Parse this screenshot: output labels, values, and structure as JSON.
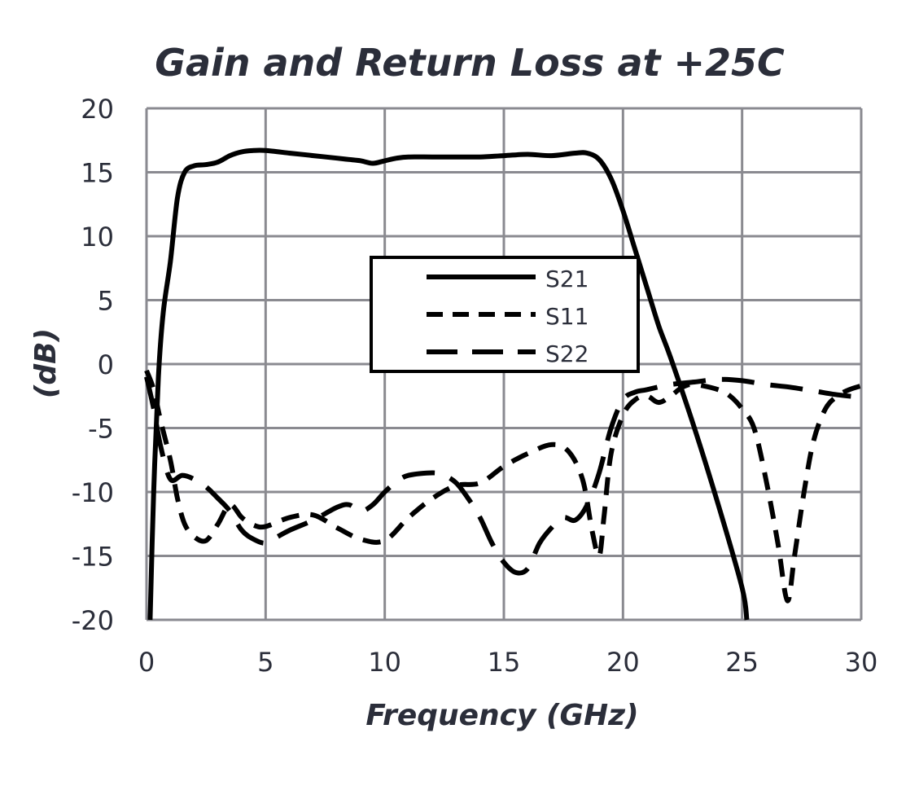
{
  "chart_data": {
    "type": "line",
    "title": "Gain and Return Loss at +25C",
    "xlabel": "Frequency (GHz)",
    "ylabel": "(dB)",
    "xlim": [
      0,
      30
    ],
    "ylim": [
      -20,
      20
    ],
    "x_ticks": [
      0,
      5,
      10,
      15,
      20,
      25,
      30
    ],
    "y_ticks": [
      20,
      15,
      10,
      5,
      0,
      -5,
      -10,
      -15,
      -20
    ],
    "x_tick_labels": [
      "0",
      "5",
      "10",
      "15",
      "20",
      "25",
      "30"
    ],
    "y_tick_labels": [
      "20",
      "15",
      "10",
      "5",
      "0",
      "-5",
      "-10",
      "-15",
      "-20"
    ],
    "grid": true,
    "legend_position": "center",
    "series": [
      {
        "name": "S21",
        "style": "solid",
        "x": [
          0.15,
          0.3,
          0.5,
          0.7,
          1.0,
          1.3,
          1.6,
          2.0,
          2.5,
          3.0,
          3.5,
          4.0,
          4.5,
          5.0,
          6.0,
          7.0,
          8.0,
          8.5,
          9.0,
          9.5,
          10.0,
          10.5,
          11.0,
          12.0,
          13.0,
          14.0,
          15.0,
          16.0,
          17.0,
          18.0,
          18.5,
          19.0,
          19.5,
          20.0,
          20.5,
          21.0,
          21.5,
          22.0,
          23.0,
          24.0,
          25.0,
          25.2
        ],
        "y": [
          -20,
          -10,
          -1,
          4,
          8,
          13,
          15,
          15.5,
          15.6,
          15.8,
          16.3,
          16.6,
          16.7,
          16.7,
          16.5,
          16.3,
          16.1,
          16.0,
          15.9,
          15.7,
          15.9,
          16.1,
          16.2,
          16.2,
          16.2,
          16.2,
          16.3,
          16.4,
          16.3,
          16.5,
          16.5,
          16.0,
          14.5,
          12.0,
          9.0,
          6.0,
          3.0,
          0.5,
          -5.0,
          -11.0,
          -17.5,
          -20
        ]
      },
      {
        "name": "S11",
        "style": "dashed",
        "x": [
          0,
          0.3,
          0.6,
          1.0,
          1.3,
          1.6,
          2.0,
          2.5,
          3.0,
          3.5,
          4.0,
          4.5,
          5.0,
          6.0,
          7.0,
          8.0,
          9.0,
          10.0,
          11.0,
          12.0,
          13.0,
          14.0,
          15.0,
          16.0,
          17.0,
          17.7,
          18.3,
          18.7,
          19.0,
          19.2,
          19.5,
          20.0,
          20.5,
          21.0,
          21.5,
          22.0,
          22.5,
          23.0,
          24.0,
          24.5,
          25.0,
          25.5,
          26.0,
          26.5,
          26.9,
          27.2,
          27.6,
          28.0,
          28.5,
          29.0,
          29.5,
          30.0
        ],
        "y": [
          -0.5,
          -2.0,
          -4.5,
          -7.5,
          -10.5,
          -12.5,
          -13.5,
          -13.8,
          -12.5,
          -11.0,
          -12.0,
          -12.6,
          -12.7,
          -12.0,
          -11.8,
          -12.8,
          -13.7,
          -13.8,
          -12.0,
          -10.5,
          -9.5,
          -9.3,
          -8.0,
          -7.0,
          -6.3,
          -6.8,
          -9.0,
          -13.0,
          -15.0,
          -12.0,
          -7.0,
          -4.0,
          -2.8,
          -2.5,
          -3.0,
          -2.5,
          -1.8,
          -1.6,
          -2.0,
          -2.5,
          -3.5,
          -5.0,
          -9.0,
          -14.0,
          -18.5,
          -15.0,
          -10.0,
          -6.0,
          -3.5,
          -2.5,
          -2.0,
          -1.7
        ]
      },
      {
        "name": "S22",
        "style": "longdash",
        "x": [
          0,
          0.3,
          0.6,
          1.0,
          1.5,
          2.0,
          2.5,
          3.0,
          3.5,
          4.0,
          4.5,
          5.0,
          5.5,
          6.0,
          7.0,
          8.0,
          8.5,
          9.0,
          9.5,
          10.0,
          10.5,
          11.0,
          12.0,
          12.5,
          13.0,
          13.5,
          14.0,
          14.5,
          15.0,
          15.5,
          16.0,
          16.5,
          17.0,
          17.5,
          18.0,
          18.5,
          19.0,
          19.5,
          20.0,
          20.5,
          21.0,
          22.0,
          23.0,
          24.0,
          25.0,
          26.0,
          27.0,
          28.0,
          29.0,
          30.0
        ],
        "y": [
          -1.0,
          -3.5,
          -6.5,
          -9.0,
          -8.7,
          -9.0,
          -9.6,
          -10.5,
          -11.5,
          -13.0,
          -13.7,
          -14.0,
          -13.5,
          -13.0,
          -12.2,
          -11.2,
          -11.0,
          -11.5,
          -11.0,
          -10.0,
          -9.2,
          -8.7,
          -8.5,
          -8.7,
          -9.3,
          -10.5,
          -12.0,
          -14.0,
          -15.5,
          -16.3,
          -16.0,
          -14.0,
          -12.8,
          -12.0,
          -12.2,
          -11.0,
          -8.5,
          -5.0,
          -2.8,
          -2.2,
          -2.0,
          -1.6,
          -1.4,
          -1.2,
          -1.3,
          -1.6,
          -1.8,
          -2.1,
          -2.4,
          -2.6
        ]
      }
    ]
  }
}
